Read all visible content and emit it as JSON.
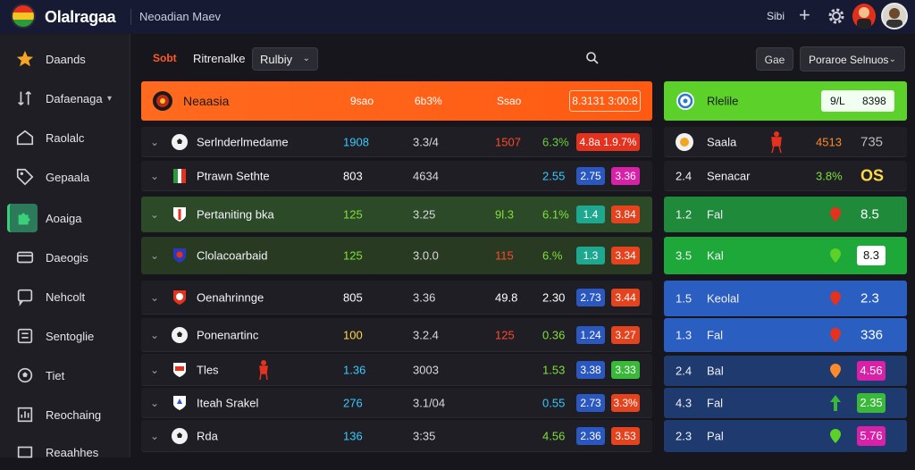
{
  "header": {
    "brand": "Olalragaa",
    "subtitle": "Neoadian Maev",
    "code": "Sibi",
    "plus_icon": "plus-icon",
    "gear_icon": "gear-icon"
  },
  "sidebar": {
    "items": [
      {
        "label": "Daands",
        "icon": "star-icon",
        "color": "#f5a524"
      },
      {
        "label": "Dafaenaga",
        "icon": "sort-icon",
        "has_chevron": true
      },
      {
        "label": "Raolalc",
        "icon": "house-icon"
      },
      {
        "label": "Gepaala",
        "icon": "tag-icon"
      },
      {
        "label": "Aoaiga",
        "icon": "puzzle-icon",
        "active": true
      },
      {
        "label": "Daeogis",
        "icon": "card-icon"
      },
      {
        "label": "Nehcolt",
        "icon": "chat-icon"
      },
      {
        "label": "Sentoglie",
        "icon": "list-icon"
      },
      {
        "label": "Tiet",
        "icon": "ball-icon"
      },
      {
        "label": "Reochaing",
        "icon": "chart-icon"
      },
      {
        "label": "Reaahhes",
        "icon": "box-icon"
      }
    ]
  },
  "toolbar": {
    "tab_active": "Sobt",
    "tab_secondary": "Ritrenalke",
    "select_value": "Rulbiy",
    "go_button": "Gae",
    "right_select": "Poraroe Selnuos"
  },
  "main": {
    "header": {
      "name": "Neaasia",
      "col1": "9sao",
      "col2": "6b3%",
      "col3": "Ssao",
      "box": "8.3131 3:00:8"
    },
    "rows": [
      {
        "name": "Serlnderlmedame",
        "c1": "1908",
        "c1_color": "#3ac8ff",
        "c2": "3.3/4",
        "c3": "1507",
        "c3_color": "#ff4a2a",
        "c4": "6.3%",
        "c4_color": "#6ad03a",
        "b1": "4.8a 1.9.7%",
        "b1_color": "#e5321e",
        "b2": "",
        "b2_color": "",
        "bg": "#1e1e24",
        "crest": "ball"
      },
      {
        "name": "Ptrawn Sethte",
        "c1": "803",
        "c1_color": "#ffffff",
        "c2": "4634",
        "c3": "",
        "c3_color": "",
        "c4": "2.55",
        "c4_color": "#3ac8ff",
        "b1": "2.75",
        "b1_color": "#2a58c0",
        "b2": "3.36",
        "b2_color": "#d820a8",
        "bg": "#1e1e24",
        "crest": "flag"
      },
      {
        "name": "Pertaniting bka",
        "c1": "125",
        "c1_color": "#7ee03a",
        "c2": "3.25",
        "c3": "9l.3",
        "c3_color": "#7ee03a",
        "c4": "6.1%",
        "c4_color": "#7ee03a",
        "b1": "1.4",
        "b1_color": "#1fa890",
        "b2": "3.84",
        "b2_color": "#e5421e",
        "bg": "#2d4a28",
        "crest": "shield"
      },
      {
        "name": "Clolacoarbaid",
        "c1": "125",
        "c1_color": "#7ee03a",
        "c2": "3.0.0",
        "c3": "115",
        "c3_color": "#ff4a2a",
        "c4": "6.%",
        "c4_color": "#7ee03a",
        "b1": "1.3",
        "b1_color": "#1fa890",
        "b2": "3.34",
        "b2_color": "#e5421e",
        "bg": "#283a22",
        "crest": "shield2"
      },
      {
        "name": "Oenahrinnge",
        "c1": "805",
        "c1_color": "#ffffff",
        "c2": "3.36",
        "c3": "49.8",
        "c3_color": "#ffffff",
        "c4": "2.30",
        "c4_color": "#ffffff",
        "b1": "2.73",
        "b1_color": "#2a58c0",
        "b2": "3.44",
        "b2_color": "#e5421e",
        "bg": "#1e1e24",
        "crest": "crest"
      },
      {
        "name": "Ponenartinc",
        "c1": "100",
        "c1_color": "#ffd84a",
        "c2": "3.2.4",
        "c3": "125",
        "c3_color": "#ff4a2a",
        "c4": "0.36",
        "c4_color": "#7ee03a",
        "b1": "1.24",
        "b1_color": "#2a58c0",
        "b2": "3.27",
        "b2_color": "#e5421e",
        "bg": "#1e1e24",
        "crest": "ball"
      },
      {
        "name": "Tles",
        "c1": "1.36",
        "c1_color": "#3ac8ff",
        "c2": "3003",
        "c3": "",
        "c3_color": "",
        "c4": "1.53",
        "c4_color": "#7ee03a",
        "b1": "3.38",
        "b1_color": "#2a58c0",
        "b2": "3.33",
        "b2_color": "#3ab83a",
        "bg": "#1e1e24",
        "crest": "crest2"
      },
      {
        "name": "Iteah Srakel",
        "c1": "276",
        "c1_color": "#3ac8ff",
        "c2": "3.1/04",
        "c3": "",
        "c3_color": "",
        "c4": "0.55",
        "c4_color": "#3ac8ff",
        "b1": "2.73",
        "b1_color": "#2a58c0",
        "b2": "3.3%",
        "b2_color": "#e5421e",
        "bg": "#1e1e24",
        "crest": "shield3"
      },
      {
        "name": "Rda",
        "c1": "136",
        "c1_color": "#3ac8ff",
        "c2": "3:35",
        "c3": "",
        "c3_color": "",
        "c4": "4.56",
        "c4_color": "#7ee03a",
        "b1": "2.36",
        "b1_color": "#2a58c0",
        "b2": "3.53",
        "b2_color": "#e5421e",
        "bg": "#1e1e24",
        "crest": "ball"
      }
    ]
  },
  "right_panel": {
    "header": {
      "title": "Rlelile",
      "box1": "9/L",
      "box2": "8398"
    },
    "rows": [
      {
        "left": "",
        "label": "Saala",
        "v1": "4513",
        "v1_color": "#ff8a2a",
        "v2": "735",
        "v2_color": "#bbbbbb",
        "bg": "#1e1e24",
        "marker": "player"
      },
      {
        "left": "2.4",
        "label": "Senacar",
        "v1": "3.8%",
        "v1_color": "#7ee03a",
        "v2": "OS",
        "v2_color": "#ffd84a",
        "bg": "#1e1e24",
        "marker": ""
      },
      {
        "left": "1.2",
        "label": "Fal",
        "v1": "",
        "v1_color": "",
        "v2": "8.5",
        "v2_color": "#ffffff",
        "bg": "#1e8a3a",
        "marker": "pin-red"
      },
      {
        "left": "3.5",
        "label": "Kal",
        "v1": "",
        "v1_color": "",
        "v2": "8.3",
        "v2_color": "#111111",
        "bg": "#1fa83a",
        "marker": "pin-green",
        "v2_box": "#ffffff"
      },
      {
        "left": "1.5",
        "label": "Keolal",
        "v1": "",
        "v1_color": "",
        "v2": "2.3",
        "v2_color": "#ffffff",
        "bg": "#2a5ec0",
        "marker": "pin-red"
      },
      {
        "left": "1.3",
        "label": "Fal",
        "v1": "",
        "v1_color": "",
        "v2": "336",
        "v2_color": "#ffffff",
        "bg": "#2a5ec0",
        "marker": "pin-red"
      },
      {
        "left": "2.4",
        "label": "Bal",
        "v1": "",
        "v1_color": "",
        "v2": "4.56",
        "v2_color": "#ffffff",
        "bg": "#1e3a6e",
        "marker": "pin-orange",
        "v2_box": "#d820a8"
      },
      {
        "left": "4.3",
        "label": "Fal",
        "v1": "",
        "v1_color": "",
        "v2": "2.35",
        "v2_color": "#ffffff",
        "bg": "#1e3a6e",
        "marker": "pin-greenarrow",
        "v2_box": "#3ab83a"
      },
      {
        "left": "2.3",
        "label": "Pal",
        "v1": "",
        "v1_color": "",
        "v2": "5.76",
        "v2_color": "#ffffff",
        "bg": "#1e3a6e",
        "marker": "pin-green",
        "v2_box": "#d820a8"
      }
    ]
  }
}
